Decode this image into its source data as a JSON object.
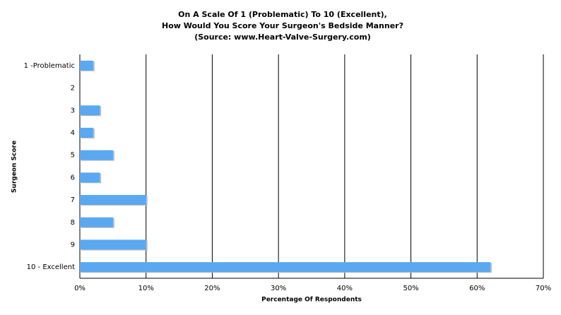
{
  "chart_data": {
    "type": "bar",
    "orientation": "horizontal",
    "title": [
      "On A Scale Of 1 (Problematic) To 10 (Excellent),",
      "How Would You Score Your Surgeon's Bedside Manner?",
      "(Source: www.Heart-Valve-Surgery.com)"
    ],
    "x_label": "Percentage Of Respondents",
    "y_label": "Surgeon Score",
    "categories": [
      "1 -Problematic",
      "2",
      "3",
      "4",
      "5",
      "6",
      "7",
      "8",
      "9",
      "10 - Excellent"
    ],
    "values": [
      2,
      0,
      3,
      2,
      5,
      3,
      10,
      5,
      10,
      62
    ],
    "color": "#5aa8f0",
    "xlim": [
      0,
      70
    ],
    "xticks": [
      {
        "value": 0,
        "label": "0%"
      },
      {
        "value": 10,
        "label": "10%"
      },
      {
        "value": 20,
        "label": "20%"
      },
      {
        "value": 30,
        "label": "30%"
      },
      {
        "value": 40,
        "label": "40%"
      },
      {
        "value": 50,
        "label": "50%"
      },
      {
        "value": 60,
        "label": "60%"
      },
      {
        "value": 70,
        "label": "70%"
      }
    ],
    "grid": true
  }
}
